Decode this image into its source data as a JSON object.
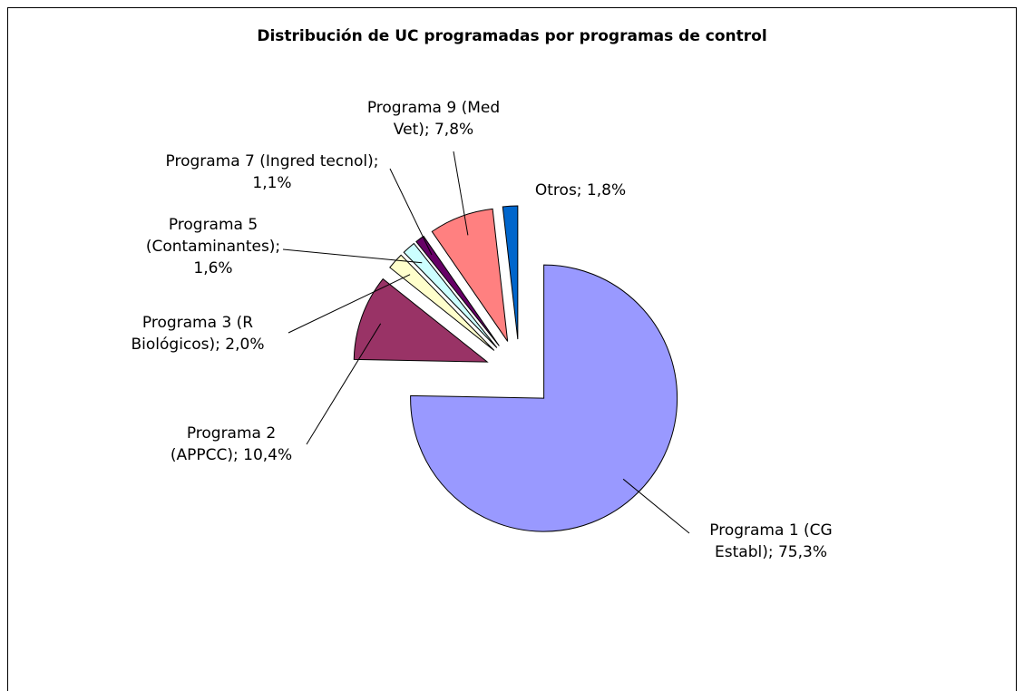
{
  "chart_data": {
    "type": "pie",
    "title": "Distribución de UC programadas por programas de control",
    "values": [
      75.3,
      10.4,
      2.0,
      1.6,
      1.1,
      7.8,
      1.8
    ],
    "value_labels": [
      "Programa 1 (CG Establ); 75,3%",
      "Programa 2 (APPCC); 10,4%",
      "Programa 3 (R Biológicos); 2,0%",
      "Programa 5 (Contaminantes); 1,6%",
      "Programa 7 (Ingred tecnol); 1,1%",
      "Programa 9 (Med Vet); 7,8%",
      "Otros; 1,8%"
    ],
    "colors": [
      "#9999ff",
      "#993366",
      "#ffffcc",
      "#ccffff",
      "#660066",
      "#ff8080",
      "#0066cc"
    ]
  }
}
